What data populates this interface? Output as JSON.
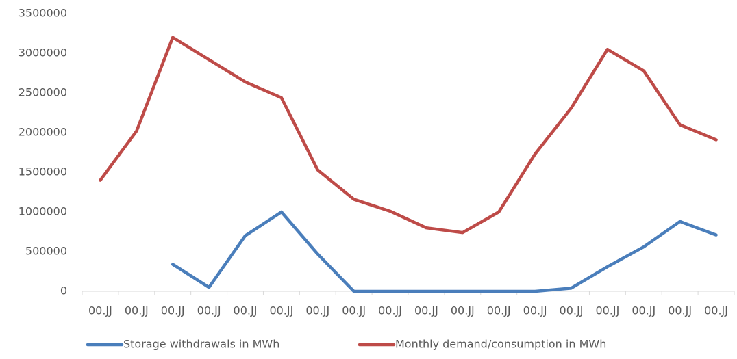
{
  "chart_data": {
    "type": "line",
    "categories": [
      "00.JJ",
      "00.JJ",
      "00.JJ",
      "00.JJ",
      "00.JJ",
      "00.JJ",
      "00.JJ",
      "00.JJ",
      "00.JJ",
      "00.JJ",
      "00.JJ",
      "00.JJ",
      "00.JJ",
      "00.JJ",
      "00.JJ",
      "00.JJ",
      "00.JJ",
      "00.JJ"
    ],
    "series": [
      {
        "name": "Storage withdrawals in MWh",
        "color": "#4a7ebb",
        "values": [
          null,
          null,
          340000,
          50000,
          700000,
          1000000,
          470000,
          0,
          0,
          0,
          0,
          0,
          0,
          40000,
          310000,
          560000,
          880000,
          710000
        ]
      },
      {
        "name": "Monthly demand/consumption in MWh",
        "color": "#be4b48",
        "values": [
          1400000,
          2020000,
          3200000,
          2920000,
          2640000,
          2440000,
          1530000,
          1160000,
          1010000,
          800000,
          740000,
          1000000,
          1730000,
          2310000,
          3050000,
          2780000,
          2100000,
          1910000
        ]
      }
    ],
    "ylim": [
      0,
      3500000
    ],
    "yticks": [
      0,
      500000,
      1000000,
      1500000,
      2000000,
      2500000,
      3000000,
      3500000
    ],
    "grid": false,
    "legend": "bottom"
  }
}
